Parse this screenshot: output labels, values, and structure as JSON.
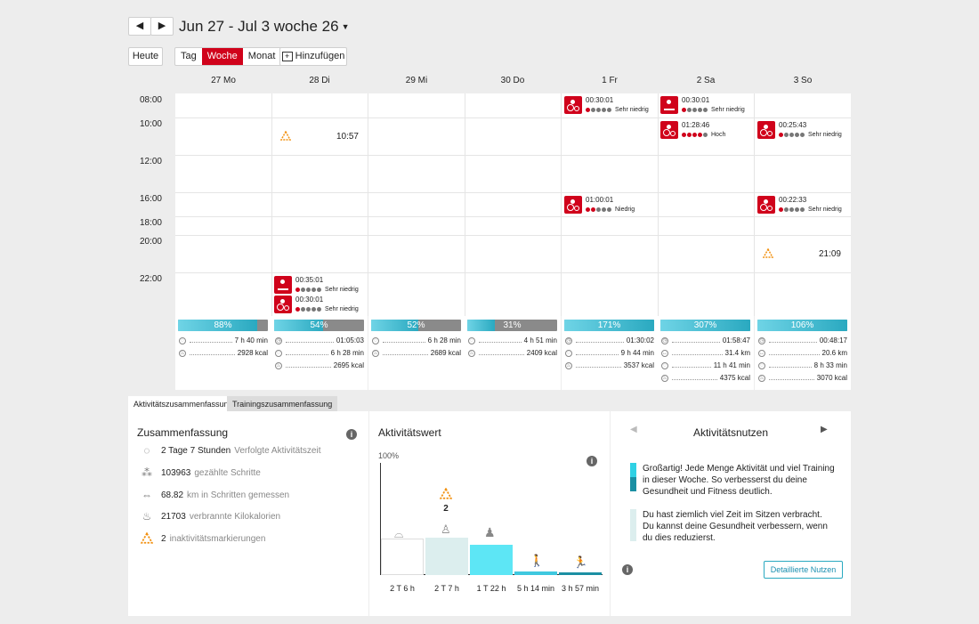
{
  "nav": {
    "prev_icon": "◀",
    "next_icon": "▶",
    "range": "Jun 27 - Jul 3 woche 26",
    "today": "Heute",
    "views": [
      "Tag",
      "Woche",
      "Monat"
    ],
    "active_view": "Woche",
    "add": "Hinzufügen"
  },
  "days": [
    "27 Mo",
    "28 Di",
    "29 Mi",
    "30 Do",
    "1 Fr",
    "2 Sa",
    "3 So"
  ],
  "times": [
    "08:00",
    "10:00",
    "12:00",
    "16:00",
    "18:00",
    "20:00",
    "22:00"
  ],
  "events": {
    "fri_0800": {
      "time": "00:30:01",
      "intensity": "Sehr niedrig"
    },
    "sat_0800": {
      "time": "00:30:01",
      "intensity": "Sehr niedrig"
    },
    "sat_1000": {
      "time": "01:28:46",
      "intensity": "Hoch"
    },
    "sun_1000": {
      "time": "00:25:43",
      "intensity": "Sehr niedrig"
    },
    "fri_1600": {
      "time": "01:00:01",
      "intensity": "Niedrig"
    },
    "sun_1600": {
      "time": "00:22:33",
      "intensity": "Sehr niedrig"
    },
    "tue_2200a": {
      "time": "00:35:01",
      "intensity": "Sehr niedrig"
    },
    "tue_2200b": {
      "time": "00:30:01",
      "intensity": "Sehr niedrig"
    }
  },
  "inactivity": {
    "tue": "10:57",
    "sun": "21:09"
  },
  "day_summaries": [
    {
      "percent": "88%",
      "fill": 0.88,
      "rows": [
        "7 h 40 min",
        "2928 kcal"
      ]
    },
    {
      "percent": "54%",
      "fill": 0.54,
      "rows": [
        "01:05:03",
        "6 h 28 min",
        "2695 kcal"
      ]
    },
    {
      "percent": "52%",
      "fill": 0.52,
      "rows": [
        "6 h 28 min",
        "2689 kcal"
      ]
    },
    {
      "percent": "31%",
      "fill": 0.31,
      "rows": [
        "4 h 51 min",
        "2409 kcal"
      ]
    },
    {
      "percent": "171%",
      "fill": 1.0,
      "rows": [
        "01:30:02",
        "9 h 44 min",
        "3537 kcal"
      ]
    },
    {
      "percent": "307%",
      "fill": 1.0,
      "rows": [
        "01:58:47",
        "31.4 km",
        "11 h 41 min",
        "4375 kcal"
      ]
    },
    {
      "percent": "106%",
      "fill": 1.0,
      "rows": [
        "00:48:17",
        "20.6 km",
        "8 h 33 min",
        "3070 kcal"
      ]
    }
  ],
  "tabs": [
    "Aktivitätszusammenfassung",
    "Trainingszusammenfassung"
  ],
  "summary": {
    "title": "Zusammenfassung",
    "rows": [
      {
        "value": "2 Tage 7 Stunden",
        "label": "Verfolgte Aktivitätszeit"
      },
      {
        "value": "103963",
        "label": "gezählte Schritte"
      },
      {
        "value": "68.82",
        "label": "km in Schritten gemessen"
      },
      {
        "value": "21703",
        "label": "verbrannte Kilokalorien"
      },
      {
        "value": "2",
        "label": "inaktivitätsmarkierungen"
      }
    ]
  },
  "activity_value": {
    "title": "Aktivitätswert",
    "top_label": "100%",
    "marker_count": "2",
    "bars": [
      {
        "label": "2 T 6 h",
        "height": 0.45,
        "color": "#ffffff"
      },
      {
        "label": "2 T 7 h",
        "height": 0.46,
        "color": "#dceeee"
      },
      {
        "label": "1 T 22 h",
        "height": 0.37,
        "color": "#5de6f5"
      },
      {
        "label": "5 h 14 min",
        "height": 0.04,
        "color": "#3fc8df"
      },
      {
        "label": "3 h 57 min",
        "height": 0.03,
        "color": "#1c8fa3"
      }
    ]
  },
  "benefit": {
    "title": "Aktivitätsnutzen",
    "msg1": "Großartig! Jede Menge Aktivität und viel Training in dieser Woche. So verbesserst du deine Gesundheit und Fitness deutlich.",
    "msg2": "Du hast ziemlich viel Zeit im Sitzen verbracht. Du kannst deine Gesundheit verbessern, wenn du dies reduzierst.",
    "button": "Detaillierte Nutzen"
  }
}
